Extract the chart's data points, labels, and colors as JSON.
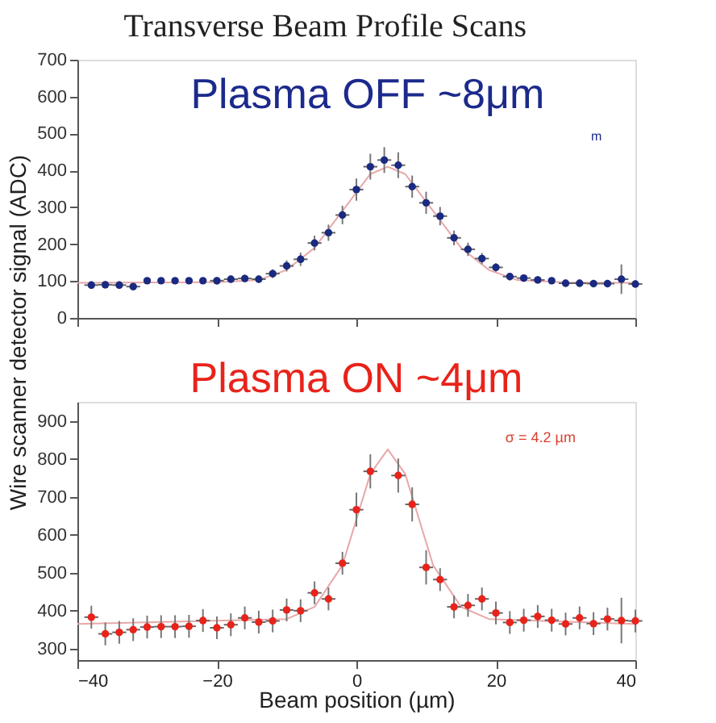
{
  "chart_data": [
    {
      "type": "scatter",
      "title": "Transverse Beam Profile Scans",
      "ylabel": "Wire scanner detector signal (ADC)",
      "xlim": [
        -40,
        40
      ],
      "xticks": [
        -40,
        -20,
        0,
        20,
        40
      ],
      "ylim": [
        0,
        700
      ],
      "yticks": [
        0,
        100,
        200,
        300,
        400,
        500,
        600,
        700
      ],
      "tick_labels": "y",
      "grid": false,
      "annotations": [
        "Plasma OFF ~8μm",
        "m"
      ],
      "series": [
        {
          "type": "line",
          "color": "#e8a8a8",
          "x": [
            -40,
            -20,
            -14,
            -10,
            -6,
            -2,
            2,
            4.5,
            7,
            11,
            15,
            19,
            23,
            30,
            40
          ],
          "values": [
            95,
            97,
            103,
            130,
            190,
            290,
            390,
            410,
            390,
            290,
            190,
            130,
            103,
            96,
            95
          ]
        },
        {
          "color": "#1a2a80",
          "marker": "circle",
          "x": [
            -38,
            -36,
            -34,
            -32,
            -30,
            -28,
            -26,
            -24,
            -22,
            -20,
            -18,
            -16,
            -14,
            -12,
            -10,
            -8,
            -6,
            -4,
            -2,
            0,
            2,
            4,
            6,
            8,
            10,
            12,
            14,
            16,
            18,
            20,
            22,
            24,
            26,
            28,
            30,
            32,
            34,
            36,
            38,
            40
          ],
          "values": [
            89,
            90,
            89,
            85,
            101,
            101,
            101,
            101,
            101,
            101,
            105,
            107,
            105,
            120,
            141,
            159,
            203,
            231,
            279,
            348,
            410,
            428,
            414,
            356,
            312,
            276,
            217,
            186,
            161,
            137,
            112,
            108,
            103,
            101,
            94,
            94,
            93,
            93,
            105,
            92
          ],
          "errors": [
            10,
            10,
            10,
            10,
            null,
            null,
            null,
            null,
            null,
            10,
            10,
            10,
            10,
            12,
            15,
            18,
            20,
            22,
            25,
            30,
            35,
            35,
            35,
            30,
            30,
            25,
            20,
            18,
            15,
            12,
            10,
            10,
            10,
            null,
            10,
            10,
            10,
            10,
            40,
            10
          ],
          "xerrors": [
            1,
            1,
            1,
            1,
            null,
            null,
            null,
            null,
            null,
            1,
            1,
            1,
            1,
            1,
            1,
            1,
            1,
            1,
            1,
            1,
            1,
            1,
            1,
            1,
            1,
            1,
            1,
            1,
            1,
            1,
            1,
            1,
            1,
            null,
            1,
            1,
            1,
            1,
            1,
            1
          ]
        }
      ]
    },
    {
      "type": "scatter",
      "xlabel": "Beam position (µm)",
      "xlim": [
        -40,
        40
      ],
      "xticks": [
        -40,
        -20,
        0,
        20,
        40
      ],
      "ylim": [
        270,
        950
      ],
      "yticks": [
        300,
        400,
        500,
        600,
        700,
        800,
        900
      ],
      "grid": false,
      "annotations": [
        "Plasma ON ~4μm",
        "σ = 4.2 µm"
      ],
      "series": [
        {
          "type": "line",
          "color": "#e8a8a8",
          "x": [
            -40,
            -10,
            -6,
            -2,
            0,
            2,
            4.5,
            7,
            9,
            11,
            15,
            19,
            40
          ],
          "values": [
            365,
            378,
            410,
            520,
            640,
            760,
            825,
            760,
            640,
            520,
            410,
            378,
            365
          ]
        },
        {
          "color": "#e8231a",
          "marker": "circle",
          "x": [
            -38,
            -36,
            -34,
            -32,
            -30,
            -28,
            -26,
            -24,
            -22,
            -20,
            -18,
            -16,
            -14,
            -12,
            -10,
            -8,
            -6,
            -4,
            -2,
            0,
            2,
            4,
            6,
            8,
            10,
            12,
            14,
            16,
            18,
            20,
            22,
            24,
            26,
            28,
            30,
            32,
            34,
            36,
            38,
            40
          ],
          "values": [
            383,
            339,
            343,
            350,
            357,
            358,
            358,
            359,
            374,
            355,
            363,
            381,
            370,
            373,
            402,
            400,
            447,
            431,
            525,
            666,
            767,
            null,
            756,
            680,
            514,
            482,
            410,
            414,
            431,
            394,
            369,
            375,
            385,
            375,
            365,
            381,
            366,
            378,
            374,
            373
          ],
          "errors": [
            30,
            30,
            30,
            30,
            30,
            30,
            30,
            30,
            30,
            30,
            30,
            30,
            30,
            30,
            30,
            30,
            30,
            30,
            30,
            45,
            45,
            null,
            45,
            45,
            45,
            30,
            30,
            30,
            30,
            30,
            30,
            30,
            30,
            30,
            30,
            30,
            30,
            30,
            60,
            30
          ],
          "xerrors": [
            1,
            1,
            1,
            1,
            1,
            1,
            1,
            1,
            1,
            1,
            1,
            1,
            1,
            1,
            1,
            1,
            1,
            1,
            1,
            1,
            1,
            null,
            1,
            1,
            1,
            1,
            1,
            1,
            1,
            1,
            1,
            1,
            1,
            1,
            1,
            1,
            1,
            1,
            1,
            1
          ]
        }
      ]
    }
  ]
}
